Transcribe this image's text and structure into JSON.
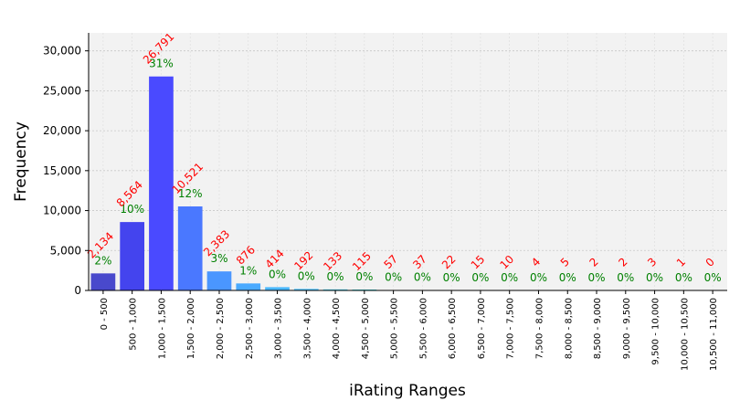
{
  "chart_data": {
    "type": "bar",
    "xlabel": "iRating Ranges",
    "ylabel": "Frequency",
    "ylim": [
      0,
      32250
    ],
    "yticks": [
      0,
      5000,
      10000,
      15000,
      20000,
      25000,
      30000
    ],
    "ytick_labels": [
      "0",
      "5,000",
      "10,000",
      "15,000",
      "20,000",
      "25,000",
      "30,000"
    ],
    "grid": true,
    "categories": [
      "0 - 500",
      "500 - 1,000",
      "1,000 - 1,500",
      "1,500 - 2,000",
      "2,000 - 2,500",
      "2,500 - 3,000",
      "3,000 - 3,500",
      "3,500 - 4,000",
      "4,000 - 4,500",
      "4,500 - 5,000",
      "5,000 - 5,500",
      "5,500 - 6,000",
      "6,000 - 6,500",
      "6,500 - 7,000",
      "7,000 - 7,500",
      "7,500 - 8,000",
      "8,000 - 8,500",
      "8,500 - 9,000",
      "9,000 - 9,500",
      "9,500 - 10,000",
      "10,000 - 10,500",
      "10,500 - 11,000"
    ],
    "values": [
      2134,
      8564,
      26791,
      10521,
      2383,
      876,
      414,
      192,
      133,
      115,
      57,
      37,
      22,
      15,
      10,
      4,
      5,
      2,
      2,
      3,
      1,
      0
    ],
    "count_labels": [
      "2,134",
      "8,564",
      "26,791",
      "10,521",
      "2,383",
      "876",
      "414",
      "192",
      "133",
      "115",
      "57",
      "37",
      "22",
      "15",
      "10",
      "4",
      "5",
      "2",
      "2",
      "3",
      "1",
      "0"
    ],
    "percent_labels": [
      "2%",
      "10%",
      "31%",
      "12%",
      "3%",
      "1%",
      "0%",
      "0%",
      "0%",
      "0%",
      "0%",
      "0%",
      "0%",
      "0%",
      "0%",
      "0%",
      "0%",
      "0%",
      "0%",
      "0%",
      "0%",
      "0%"
    ],
    "colors": {
      "plot_background": "#f2f2f2",
      "count_label": "#ff0000",
      "percent_label": "#008000",
      "gridline": "#c8c8c8",
      "bars": [
        "#4949cc",
        "#4444ee",
        "#4a4aff",
        "#4a78ff",
        "#4a96ff",
        "#4aaaff",
        "#4ab8ff",
        "#4ac4ff",
        "#4ad0f0",
        "#4ad8e0",
        "#4adcd0",
        "#4ae0c0",
        "#4ae4b0",
        "#4ae8a0",
        "#4aec90",
        "#4af080",
        "#4af470",
        "#4af860",
        "#4afa55",
        "#4afc4a",
        "#5aff4a",
        "#6aff4a"
      ]
    }
  }
}
